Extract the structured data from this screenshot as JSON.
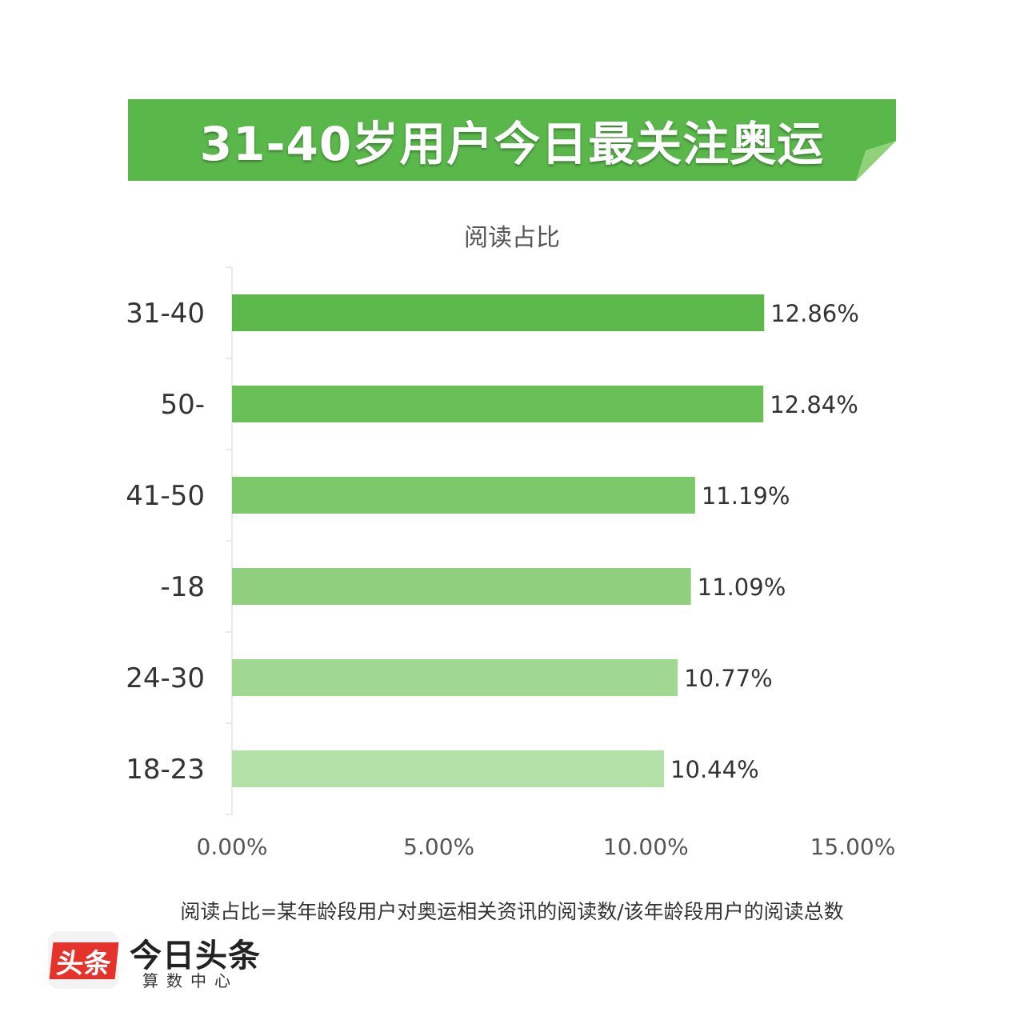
{
  "banner": {
    "title": "31-40岁用户今日最关注奥运"
  },
  "colors": {
    "banner_green": "#5ab84b",
    "banner_fold": "#8fd27a",
    "bar_shades": [
      "#5cb84a",
      "#69c057",
      "#7dc86a",
      "#8fcf7e",
      "#a0d892",
      "#b2e0a6"
    ]
  },
  "chart_data": {
    "type": "bar",
    "orientation": "horizontal",
    "title": "阅读占比",
    "categories": [
      "31-40",
      "50-",
      "41-50",
      "-18",
      "24-30",
      "18-23"
    ],
    "values": [
      12.86,
      12.84,
      11.19,
      11.09,
      10.77,
      10.44
    ],
    "value_labels": [
      "12.86%",
      "12.84%",
      "11.19%",
      "11.09%",
      "10.77%",
      "10.44%"
    ],
    "xlim": [
      0,
      15
    ],
    "xticks": [
      0,
      5,
      10,
      15
    ],
    "xtick_labels": [
      "0.00%",
      "5.00%",
      "10.00%",
      "15.00%"
    ],
    "grid": false,
    "legend": "none"
  },
  "footnote": "阅读占比=某年龄段用户对奥运相关资讯的阅读数/该年龄段用户的阅读总数",
  "logo": {
    "badge_text": "头条",
    "name": "今日头条",
    "sub": "算数中心"
  }
}
